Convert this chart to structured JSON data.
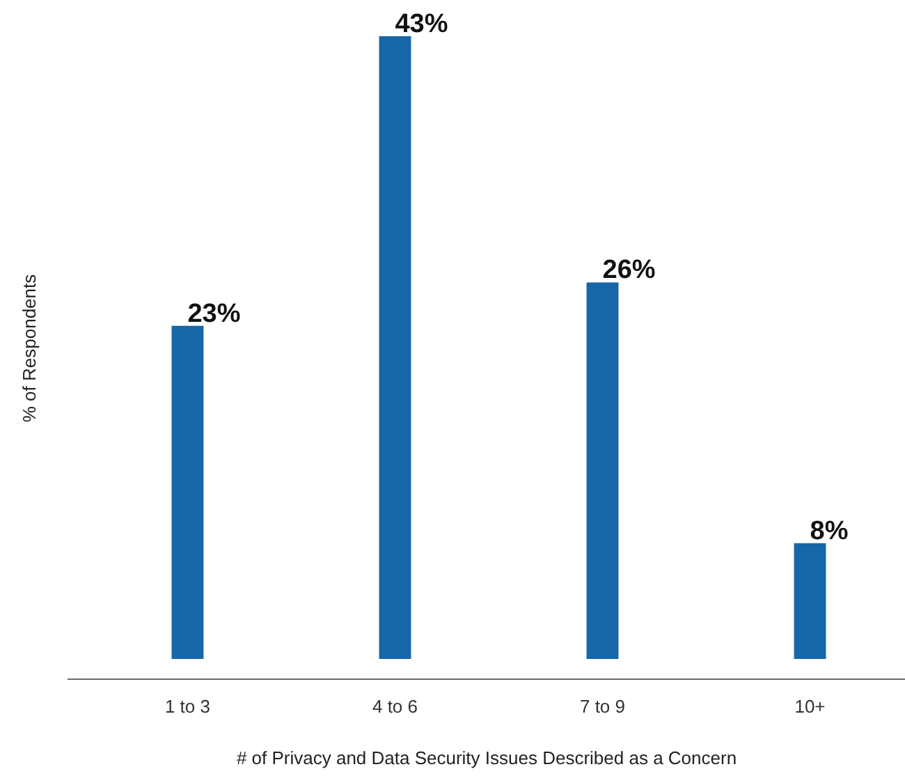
{
  "chart_data": {
    "type": "bar",
    "xlabel": "# of Privacy and Data Security Issues Described as a Concern",
    "ylabel": "% of Respondents",
    "categories": [
      "1 to 3",
      "4 to 6",
      "7 to 9",
      "10+"
    ],
    "values": [
      23,
      43,
      26,
      8
    ],
    "color": "#1766a8",
    "value_labels": [
      "23%",
      "43%",
      "26%",
      "8%"
    ]
  }
}
